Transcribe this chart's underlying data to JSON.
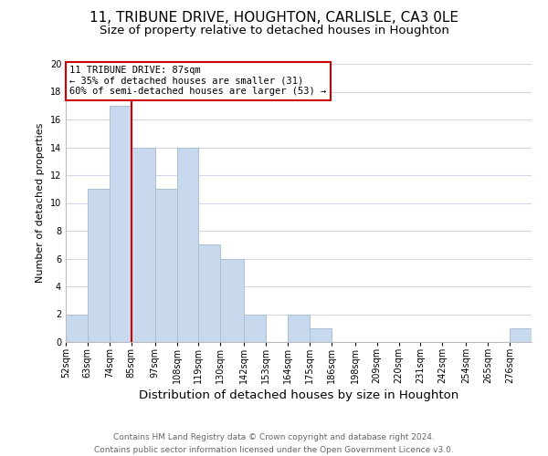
{
  "title": "11, TRIBUNE DRIVE, HOUGHTON, CARLISLE, CA3 0LE",
  "subtitle": "Size of property relative to detached houses in Houghton",
  "xlabel": "Distribution of detached houses by size in Houghton",
  "ylabel": "Number of detached properties",
  "bar_values": [
    2,
    11,
    17,
    14,
    11,
    14,
    7,
    6,
    2,
    0,
    2,
    1,
    0,
    0,
    0,
    0,
    0,
    0,
    0,
    0,
    1
  ],
  "bin_edges": [
    52,
    63,
    74,
    85,
    97,
    108,
    119,
    130,
    142,
    153,
    164,
    175,
    186,
    198,
    209,
    220,
    231,
    242,
    254,
    265,
    276,
    287
  ],
  "tick_labels": [
    "52sqm",
    "63sqm",
    "74sqm",
    "85sqm",
    "97sqm",
    "108sqm",
    "119sqm",
    "130sqm",
    "142sqm",
    "153sqm",
    "164sqm",
    "175sqm",
    "186sqm",
    "198sqm",
    "209sqm",
    "220sqm",
    "231sqm",
    "242sqm",
    "254sqm",
    "265sqm",
    "276sqm"
  ],
  "bar_color": "#c8d9ed",
  "bar_edge_color": "#a8c0d8",
  "vline_x": 85,
  "vline_color": "#cc0000",
  "ylim": [
    0,
    20
  ],
  "yticks": [
    0,
    2,
    4,
    6,
    8,
    10,
    12,
    14,
    16,
    18,
    20
  ],
  "annotation_line1": "11 TRIBUNE DRIVE: 87sqm",
  "annotation_line2": "← 35% of detached houses are smaller (31)",
  "annotation_line3": "60% of semi-detached houses are larger (53) →",
  "annotation_box_color": "#ffffff",
  "annotation_box_edge": "#cc0000",
  "footer_line1": "Contains HM Land Registry data © Crown copyright and database right 2024.",
  "footer_line2": "Contains public sector information licensed under the Open Government Licence v3.0.",
  "bg_color": "#ffffff",
  "grid_color": "#d0d8e8",
  "title_fontsize": 11,
  "subtitle_fontsize": 9.5,
  "xlabel_fontsize": 9.5,
  "ylabel_fontsize": 8,
  "tick_fontsize": 7,
  "annotation_fontsize": 7.5,
  "footer_fontsize": 6.5
}
